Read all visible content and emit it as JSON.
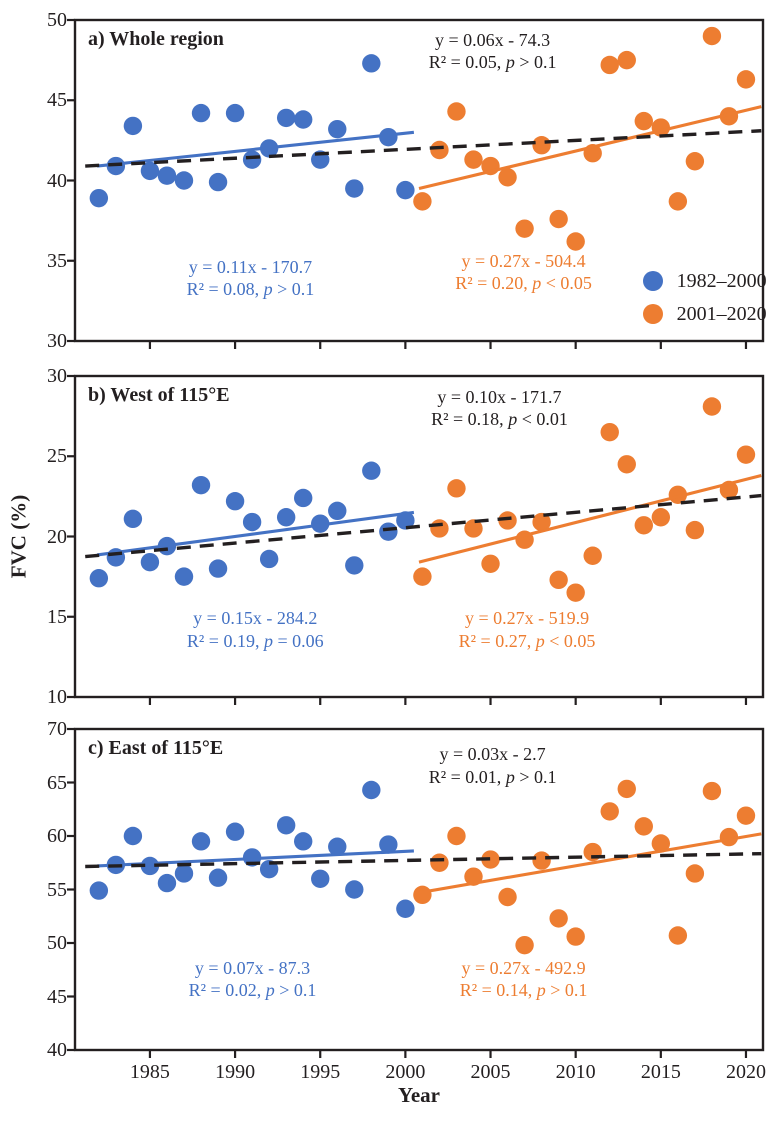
{
  "figure": {
    "xlabel": "Year",
    "ylabel": "FVC (%)",
    "background": "#ffffff",
    "colors": {
      "blue": "#4472c4",
      "orange": "#ed7d31",
      "dashed": "#231f20",
      "text": "#231f20"
    },
    "legend": {
      "items": [
        {
          "label": "1982–2000",
          "color": "blue"
        },
        {
          "label": "2001–2020",
          "color": "orange"
        }
      ]
    }
  },
  "chart_data": [
    {
      "id": "a",
      "type": "scatter",
      "title": "a) Whole region",
      "xlim": [
        1980.6,
        2021.0
      ],
      "ylim": [
        30,
        50
      ],
      "yticks": [
        30,
        35,
        40,
        45,
        50
      ],
      "xticks": [
        1985,
        1990,
        1995,
        2000,
        2005,
        2010,
        2015,
        2020
      ],
      "series": [
        {
          "name": "1982–2000",
          "color": "blue",
          "start_year": 1982,
          "values": [
            38.9,
            40.9,
            43.4,
            40.6,
            40.3,
            40.0,
            44.2,
            39.9,
            44.2,
            41.3,
            42.0,
            43.9,
            43.8,
            41.3,
            43.2,
            39.5,
            47.3,
            42.7,
            39.4
          ]
        },
        {
          "name": "2001–2020",
          "color": "orange",
          "start_year": 2001,
          "values": [
            38.7,
            41.9,
            44.3,
            41.3,
            40.9,
            40.2,
            37.0,
            42.2,
            37.6,
            36.2,
            41.7,
            47.2,
            47.5,
            43.7,
            43.3,
            38.7,
            41.2,
            49.0,
            44.0,
            46.3
          ]
        }
      ],
      "trend_lines": [
        {
          "series": "1982–2000",
          "color": "blue",
          "dashed": false,
          "x1": 1981.9,
          "y1": 40.9,
          "x2": 2000.5,
          "y2": 43.0
        },
        {
          "series": "2001–2020",
          "color": "orange",
          "dashed": false,
          "x1": 2000.8,
          "y1": 39.5,
          "x2": 2020.9,
          "y2": 44.6
        },
        {
          "series": "overall",
          "color": "dashed",
          "dashed": true,
          "x1": 1981.2,
          "y1": 40.9,
          "x2": 2020.9,
          "y2": 43.1
        }
      ],
      "annotations": [
        {
          "id": "overall",
          "color": "text",
          "x": 0.607,
          "y": 0.028,
          "eq": "y = 0.06x - 74.3",
          "r2": "R² = 0.05,",
          "p": "p > 0.1"
        },
        {
          "id": "pre2000",
          "color": "blue",
          "x": 0.255,
          "y": 0.735,
          "eq": "y = 0.11x - 170.7",
          "r2": "R² = 0.08,",
          "p": "p > 0.1"
        },
        {
          "id": "post2000",
          "color": "orange",
          "x": 0.652,
          "y": 0.715,
          "eq": "y = 0.27x - 504.4",
          "r2": "R² = 0.20,",
          "p": "p < 0.05"
        }
      ],
      "show_xtick_labels": false,
      "has_legend": true,
      "legend_pos": {
        "x": 0.825,
        "y": 0.762
      }
    },
    {
      "id": "b",
      "type": "scatter",
      "title": "b) West of 115°E",
      "xlim": [
        1980.6,
        2021.0
      ],
      "ylim": [
        10,
        30
      ],
      "yticks": [
        10,
        15,
        20,
        25,
        30
      ],
      "xticks": [
        1985,
        1990,
        1995,
        2000,
        2005,
        2010,
        2015,
        2020
      ],
      "series": [
        {
          "name": "1982–2000",
          "color": "blue",
          "start_year": 1982,
          "values": [
            17.4,
            18.7,
            21.1,
            18.4,
            19.4,
            17.5,
            23.2,
            18.0,
            22.2,
            20.9,
            18.6,
            21.2,
            22.4,
            20.8,
            21.6,
            18.2,
            24.1,
            20.3,
            21.0
          ]
        },
        {
          "name": "2001–2020",
          "color": "orange",
          "start_year": 2001,
          "values": [
            17.5,
            20.5,
            23.0,
            20.5,
            18.3,
            21.0,
            19.8,
            20.9,
            17.3,
            16.5,
            18.8,
            26.5,
            24.5,
            20.7,
            21.2,
            22.6,
            20.4,
            28.1,
            22.9,
            25.1
          ]
        }
      ],
      "trend_lines": [
        {
          "series": "1982–2000",
          "color": "blue",
          "dashed": false,
          "x1": 1981.9,
          "y1": 18.85,
          "x2": 2000.5,
          "y2": 21.5
        },
        {
          "series": "2001–2020",
          "color": "orange",
          "dashed": false,
          "x1": 2000.8,
          "y1": 18.4,
          "x2": 2020.9,
          "y2": 23.8
        },
        {
          "series": "overall",
          "color": "dashed",
          "dashed": true,
          "x1": 1981.2,
          "y1": 18.75,
          "x2": 2020.9,
          "y2": 22.55
        }
      ],
      "annotations": [
        {
          "id": "overall",
          "color": "text",
          "x": 0.617,
          "y": 0.03,
          "eq": "y = 0.10x - 171.7",
          "r2": "R² = 0.18,",
          "p": "p < 0.01"
        },
        {
          "id": "pre2000",
          "color": "blue",
          "x": 0.262,
          "y": 0.72,
          "eq": "y = 0.15x - 284.2",
          "r2": "R² = 0.19,",
          "p": "p = 0.06"
        },
        {
          "id": "post2000",
          "color": "orange",
          "x": 0.657,
          "y": 0.72,
          "eq": "y = 0.27x - 519.9",
          "r2": "R² = 0.27,",
          "p": "p < 0.05"
        }
      ],
      "show_xtick_labels": false,
      "has_legend": false
    },
    {
      "id": "c",
      "type": "scatter",
      "title": "c) East of 115°E",
      "xlim": [
        1980.6,
        2021.0
      ],
      "ylim": [
        40,
        70
      ],
      "yticks": [
        40,
        45,
        50,
        55,
        60,
        65,
        70
      ],
      "xticks": [
        1985,
        1990,
        1995,
        2000,
        2005,
        2010,
        2015,
        2020
      ],
      "series": [
        {
          "name": "1982–2000",
          "color": "blue",
          "start_year": 1982,
          "values": [
            54.9,
            57.3,
            60.0,
            57.2,
            55.6,
            56.5,
            59.5,
            56.1,
            60.4,
            58.0,
            56.9,
            61.0,
            59.5,
            56.0,
            59.0,
            55.0,
            64.3,
            59.2,
            53.2
          ]
        },
        {
          "name": "2001–2020",
          "color": "orange",
          "start_year": 2001,
          "values": [
            54.5,
            57.5,
            60.0,
            56.2,
            57.8,
            54.3,
            49.8,
            57.7,
            52.3,
            50.6,
            58.5,
            62.3,
            64.4,
            60.9,
            59.3,
            50.7,
            56.5,
            64.2,
            59.9,
            61.9
          ]
        }
      ],
      "trend_lines": [
        {
          "series": "1982–2000",
          "color": "blue",
          "dashed": false,
          "x1": 1981.9,
          "y1": 57.2,
          "x2": 2000.5,
          "y2": 58.6
        },
        {
          "series": "2001–2020",
          "color": "orange",
          "dashed": false,
          "x1": 2000.8,
          "y1": 54.7,
          "x2": 2020.9,
          "y2": 60.2
        },
        {
          "series": "overall",
          "color": "dashed",
          "dashed": true,
          "x1": 1981.2,
          "y1": 57.15,
          "x2": 2020.9,
          "y2": 58.35
        }
      ],
      "annotations": [
        {
          "id": "overall",
          "color": "text",
          "x": 0.607,
          "y": 0.045,
          "eq": "y = 0.03x - 2.7",
          "r2": "R² = 0.01,",
          "p": "p > 0.1"
        },
        {
          "id": "pre2000",
          "color": "blue",
          "x": 0.258,
          "y": 0.71,
          "eq": "y = 0.07x - 87.3",
          "r2": "R² = 0.02,",
          "p": "p > 0.1"
        },
        {
          "id": "post2000",
          "color": "orange",
          "x": 0.652,
          "y": 0.71,
          "eq": "y = 0.27x - 492.9",
          "r2": "R² = 0.14,",
          "p": "p > 0.1"
        }
      ],
      "show_xtick_labels": true,
      "has_legend": false
    }
  ]
}
